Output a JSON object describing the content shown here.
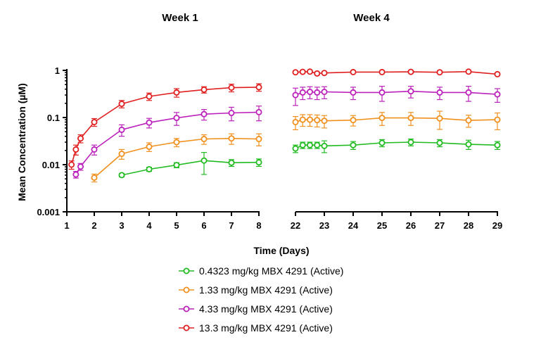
{
  "chart_data": {
    "type": "line",
    "subtype": "broken-x-axis line plot with error bars, log y scale",
    "panels": [
      {
        "title": "Week 1",
        "x_range": [
          1,
          8
        ],
        "x_ticks": [
          "1",
          "2",
          "3",
          "4",
          "5",
          "6",
          "7",
          "8"
        ]
      },
      {
        "title": "Week 4",
        "x_range": [
          22,
          29
        ],
        "x_ticks": [
          "22",
          "23",
          "24",
          "25",
          "26",
          "27",
          "28",
          "29"
        ]
      }
    ],
    "xlabel": "Time (Days)",
    "ylabel": "Mean Concentration (µM)",
    "y_scale": "log",
    "ylim": [
      0.001,
      1
    ],
    "y_ticks": [
      "0.001",
      "0.01",
      "0.1",
      "1"
    ],
    "series": [
      {
        "name": "0.4323 mg/kg MBX 4291 (Active)",
        "color": "#22bb22",
        "week1": [
          {
            "x": 3,
            "y": 0.006,
            "err": 0.0005
          },
          {
            "x": 4,
            "y": 0.008,
            "err": 0.0008
          },
          {
            "x": 5,
            "y": 0.0098,
            "err": 0.0012
          },
          {
            "x": 6,
            "y": 0.0122,
            "err": 0.006
          },
          {
            "x": 7,
            "y": 0.011,
            "err": 0.0018
          },
          {
            "x": 8,
            "y": 0.0112,
            "err": 0.002
          }
        ],
        "week4": [
          {
            "x": 22,
            "y": 0.022,
            "err": 0.004
          },
          {
            "x": 22.25,
            "y": 0.026,
            "err": 0.004
          },
          {
            "x": 22.5,
            "y": 0.026,
            "err": 0.004
          },
          {
            "x": 22.75,
            "y": 0.026,
            "err": 0.004
          },
          {
            "x": 23,
            "y": 0.025,
            "err": 0.007
          },
          {
            "x": 24,
            "y": 0.026,
            "err": 0.005
          },
          {
            "x": 25,
            "y": 0.029,
            "err": 0.005
          },
          {
            "x": 26,
            "y": 0.03,
            "err": 0.005
          },
          {
            "x": 27,
            "y": 0.029,
            "err": 0.005
          },
          {
            "x": 28,
            "y": 0.027,
            "err": 0.006
          },
          {
            "x": 29,
            "y": 0.026,
            "err": 0.005
          }
        ]
      },
      {
        "name": "1.33 mg/kg MBX 4291 (Active)",
        "color": "#f0901e",
        "week1": [
          {
            "x": 2,
            "y": 0.0053,
            "err": 0.001
          },
          {
            "x": 3,
            "y": 0.017,
            "err": 0.004
          },
          {
            "x": 4,
            "y": 0.024,
            "err": 0.005
          },
          {
            "x": 5,
            "y": 0.03,
            "err": 0.006
          },
          {
            "x": 6,
            "y": 0.035,
            "err": 0.008
          },
          {
            "x": 7,
            "y": 0.036,
            "err": 0.009
          },
          {
            "x": 8,
            "y": 0.035,
            "err": 0.01
          }
        ],
        "week4": [
          {
            "x": 22,
            "y": 0.08,
            "err": 0.025
          },
          {
            "x": 22.25,
            "y": 0.09,
            "err": 0.025
          },
          {
            "x": 22.5,
            "y": 0.09,
            "err": 0.025
          },
          {
            "x": 22.75,
            "y": 0.088,
            "err": 0.025
          },
          {
            "x": 23,
            "y": 0.085,
            "err": 0.025
          },
          {
            "x": 24,
            "y": 0.088,
            "err": 0.022
          },
          {
            "x": 25,
            "y": 0.098,
            "err": 0.03
          },
          {
            "x": 26,
            "y": 0.098,
            "err": 0.03
          },
          {
            "x": 27,
            "y": 0.096,
            "err": 0.04
          },
          {
            "x": 28,
            "y": 0.087,
            "err": 0.025
          },
          {
            "x": 29,
            "y": 0.09,
            "err": 0.035
          }
        ]
      },
      {
        "name": "4.33 mg/kg MBX 4291 (Active)",
        "color": "#bb22bb",
        "week1": [
          {
            "x": 1.33,
            "y": 0.0062,
            "err": 0.001
          },
          {
            "x": 1.5,
            "y": 0.0091,
            "err": 0.0015
          },
          {
            "x": 2,
            "y": 0.021,
            "err": 0.005
          },
          {
            "x": 3,
            "y": 0.055,
            "err": 0.015
          },
          {
            "x": 4,
            "y": 0.078,
            "err": 0.018
          },
          {
            "x": 5,
            "y": 0.098,
            "err": 0.03
          },
          {
            "x": 6,
            "y": 0.118,
            "err": 0.03
          },
          {
            "x": 7,
            "y": 0.125,
            "err": 0.04
          },
          {
            "x": 8,
            "y": 0.13,
            "err": 0.045
          }
        ],
        "week4": [
          {
            "x": 22,
            "y": 0.3,
            "err": 0.12
          },
          {
            "x": 22.25,
            "y": 0.34,
            "err": 0.1
          },
          {
            "x": 22.5,
            "y": 0.35,
            "err": 0.1
          },
          {
            "x": 22.75,
            "y": 0.34,
            "err": 0.1
          },
          {
            "x": 23,
            "y": 0.35,
            "err": 0.1
          },
          {
            "x": 24,
            "y": 0.34,
            "err": 0.1
          },
          {
            "x": 25,
            "y": 0.34,
            "err": 0.12
          },
          {
            "x": 26,
            "y": 0.36,
            "err": 0.1
          },
          {
            "x": 27,
            "y": 0.34,
            "err": 0.1
          },
          {
            "x": 28,
            "y": 0.34,
            "err": 0.12
          },
          {
            "x": 29,
            "y": 0.31,
            "err": 0.1
          }
        ]
      },
      {
        "name": "13.3 mg/kg MBX 4291 (Active)",
        "color": "#e02020",
        "week1": [
          {
            "x": 1.17,
            "y": 0.01,
            "err": 0.002
          },
          {
            "x": 1.33,
            "y": 0.021,
            "err": 0.005
          },
          {
            "x": 1.5,
            "y": 0.036,
            "err": 0.007
          },
          {
            "x": 2,
            "y": 0.08,
            "err": 0.015
          },
          {
            "x": 3,
            "y": 0.195,
            "err": 0.035
          },
          {
            "x": 4,
            "y": 0.28,
            "err": 0.05
          },
          {
            "x": 5,
            "y": 0.34,
            "err": 0.07
          },
          {
            "x": 6,
            "y": 0.39,
            "err": 0.06
          },
          {
            "x": 7,
            "y": 0.43,
            "err": 0.08
          },
          {
            "x": 8,
            "y": 0.44,
            "err": 0.08
          }
        ],
        "week4": [
          {
            "x": 22,
            "y": 0.91,
            "err": 0.05
          },
          {
            "x": 22.25,
            "y": 0.93,
            "err": 0.05
          },
          {
            "x": 22.5,
            "y": 0.94,
            "err": 0.05
          },
          {
            "x": 22.75,
            "y": 0.86,
            "err": 0.05
          },
          {
            "x": 23,
            "y": 0.88,
            "err": 0.05
          },
          {
            "x": 24,
            "y": 0.92,
            "err": 0.05
          },
          {
            "x": 25,
            "y": 0.92,
            "err": 0.05
          },
          {
            "x": 26,
            "y": 0.93,
            "err": 0.05
          },
          {
            "x": 27,
            "y": 0.91,
            "err": 0.05
          },
          {
            "x": 28,
            "y": 0.94,
            "err": 0.05
          },
          {
            "x": 29,
            "y": 0.83,
            "err": 0.05
          }
        ]
      }
    ],
    "legend": [
      "0.4323 mg/kg MBX 4291 (Active)",
      "1.33 mg/kg MBX 4291 (Active)",
      "4.33 mg/kg MBX 4291 (Active)",
      "13.3 mg/kg MBX 4291 (Active)"
    ]
  }
}
